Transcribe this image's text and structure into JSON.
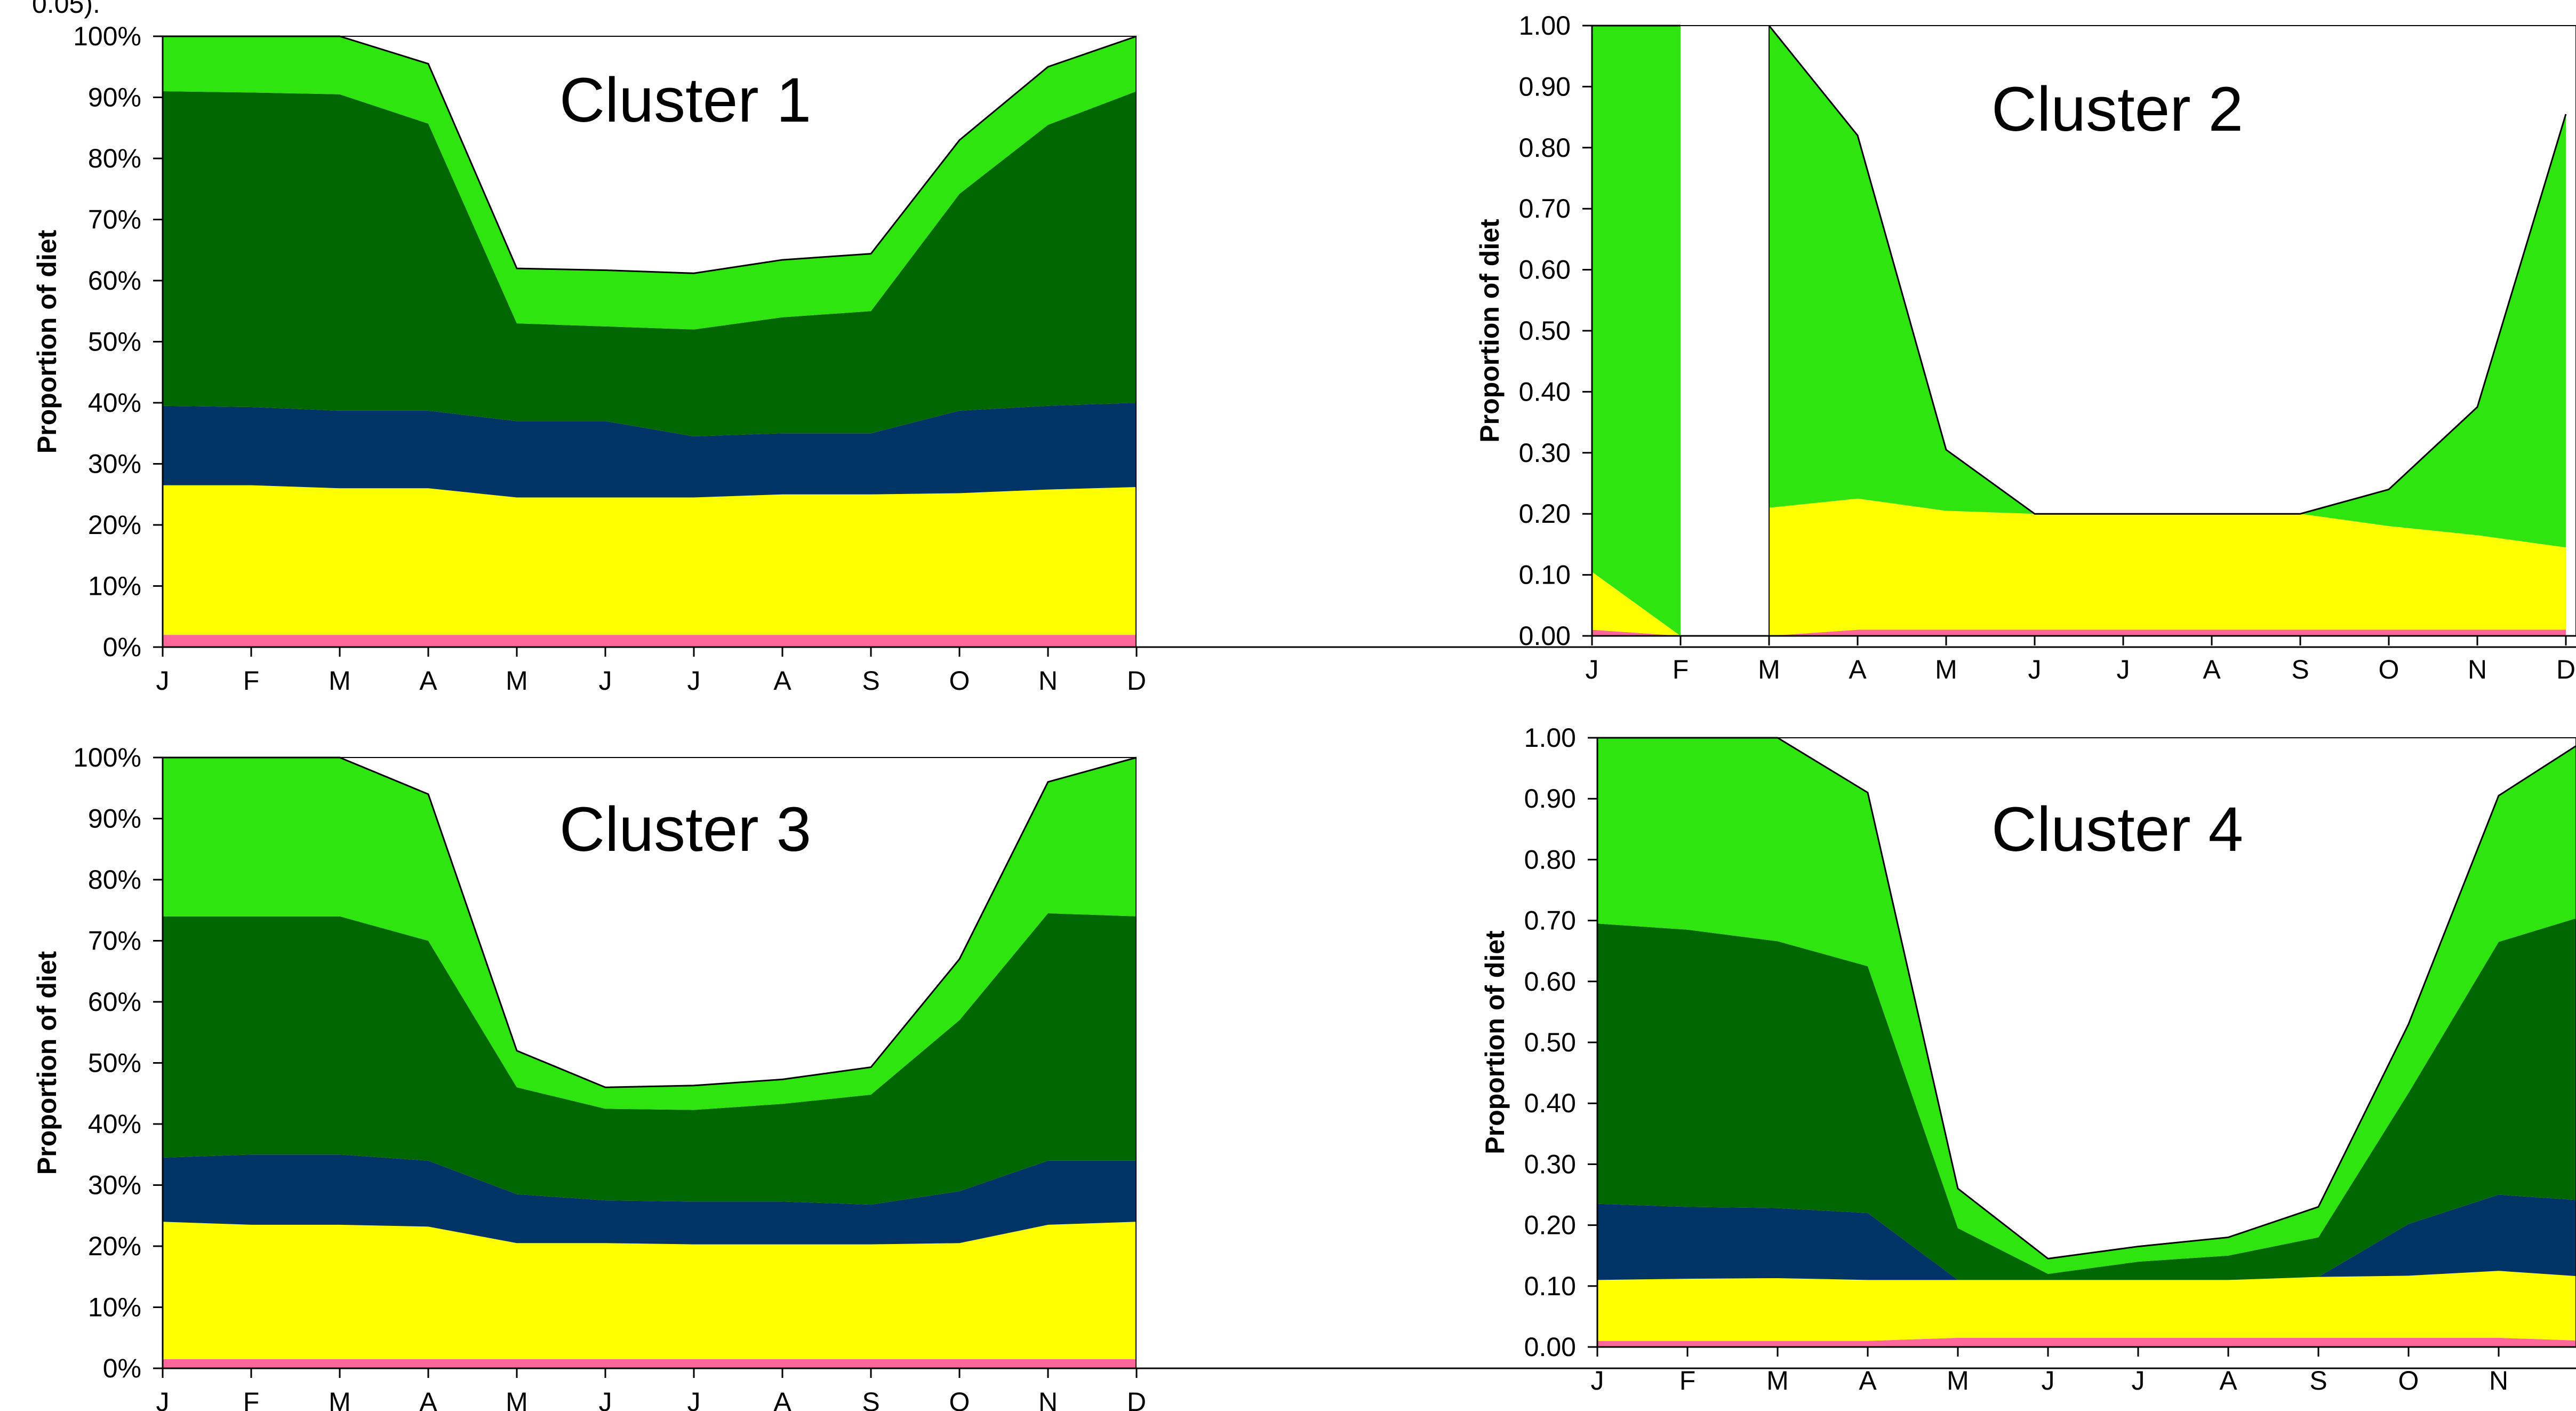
{
  "top_text": "0.05).",
  "colors": {
    "pink": "#ff6699",
    "yellow": "#ffff00",
    "navy": "#003366",
    "dark_green": "#006600",
    "light_green": "#2ee510"
  },
  "chart_data": [
    {
      "type": "area",
      "stacked": true,
      "title": "Cluster 1",
      "ylabel": "Proportion of diet",
      "categories": [
        "J",
        "F",
        "M",
        "A",
        "M",
        "J",
        "J",
        "A",
        "S",
        "O",
        "N",
        "D"
      ],
      "ylim": [
        0,
        1
      ],
      "yticks": [
        "0%",
        "10%",
        "20%",
        "30%",
        "40%",
        "50%",
        "60%",
        "70%",
        "80%",
        "90%",
        "100%"
      ],
      "series": [
        {
          "color": "#ff6699",
          "values": [
            0.02,
            0.02,
            0.02,
            0.02,
            0.02,
            0.02,
            0.02,
            0.02,
            0.02,
            0.02,
            0.02,
            0.02
          ]
        },
        {
          "color": "#ffff00",
          "values": [
            0.245,
            0.245,
            0.24,
            0.24,
            0.225,
            0.225,
            0.225,
            0.23,
            0.23,
            0.232,
            0.238,
            0.242
          ]
        },
        {
          "color": "#003366",
          "values": [
            0.13,
            0.128,
            0.127,
            0.127,
            0.125,
            0.125,
            0.1,
            0.1,
            0.1,
            0.135,
            0.137,
            0.138
          ]
        },
        {
          "color": "#006600",
          "values": [
            0.515,
            0.515,
            0.518,
            0.47,
            0.16,
            0.155,
            0.175,
            0.19,
            0.2,
            0.355,
            0.46,
            0.51
          ]
        },
        {
          "color": "#2ee510",
          "values": [
            0.09,
            0.092,
            0.095,
            0.098,
            0.09,
            0.092,
            0.092,
            0.094,
            0.094,
            0.088,
            0.095,
            0.09
          ]
        }
      ]
    },
    {
      "type": "area",
      "stacked": true,
      "title": "Cluster 2",
      "ylabel": "Proportion of diet",
      "categories": [
        "J",
        "F",
        "M",
        "A",
        "M",
        "J",
        "J",
        "A",
        "S",
        "O",
        "N",
        "D"
      ],
      "ylim": [
        0,
        1
      ],
      "yticks": [
        "0.00",
        "0.10",
        "0.20",
        "0.30",
        "0.40",
        "0.50",
        "0.60",
        "0.70",
        "0.80",
        "0.90",
        "1.00"
      ],
      "series": [
        {
          "color": "#ff6699",
          "values": [
            0.01,
            0.0,
            0.0,
            0.01,
            0.01,
            0.01,
            0.01,
            0.01,
            0.01,
            0.01,
            0.01,
            0.01
          ]
        },
        {
          "color": "#ffff00",
          "values": [
            0.095,
            0.0,
            0.21,
            0.215,
            0.195,
            0.19,
            0.19,
            0.19,
            0.19,
            0.17,
            0.155,
            0.135
          ]
        },
        {
          "color": "#2ee510",
          "values": [
            0.895,
            1.0,
            0.79,
            0.595,
            0.1,
            0.0,
            0.0,
            0.0,
            0.0,
            0.06,
            0.21,
            0.71
          ]
        }
      ],
      "gap_between": [
        "F",
        "M"
      ]
    },
    {
      "type": "area",
      "stacked": true,
      "title": "Cluster 3",
      "ylabel": "Proportion of diet",
      "categories": [
        "J",
        "F",
        "M",
        "A",
        "M",
        "J",
        "J",
        "A",
        "S",
        "O",
        "N",
        "D"
      ],
      "ylim": [
        0,
        1
      ],
      "yticks": [
        "0%",
        "10%",
        "20%",
        "30%",
        "40%",
        "50%",
        "60%",
        "70%",
        "80%",
        "90%",
        "100%"
      ],
      "series": [
        {
          "color": "#ff6699",
          "values": [
            0.015,
            0.015,
            0.015,
            0.015,
            0.015,
            0.015,
            0.015,
            0.015,
            0.015,
            0.015,
            0.015,
            0.015
          ]
        },
        {
          "color": "#ffff00",
          "values": [
            0.225,
            0.22,
            0.22,
            0.217,
            0.19,
            0.19,
            0.188,
            0.188,
            0.188,
            0.19,
            0.22,
            0.225
          ]
        },
        {
          "color": "#003366",
          "values": [
            0.105,
            0.115,
            0.115,
            0.108,
            0.08,
            0.07,
            0.07,
            0.07,
            0.065,
            0.085,
            0.105,
            0.1
          ]
        },
        {
          "color": "#006600",
          "values": [
            0.395,
            0.39,
            0.39,
            0.36,
            0.175,
            0.15,
            0.15,
            0.16,
            0.18,
            0.28,
            0.405,
            0.4
          ]
        },
        {
          "color": "#2ee510",
          "values": [
            0.26,
            0.26,
            0.26,
            0.24,
            0.06,
            0.035,
            0.04,
            0.04,
            0.045,
            0.1,
            0.215,
            0.26
          ]
        }
      ]
    },
    {
      "type": "area",
      "stacked": true,
      "title": "Cluster 4",
      "ylabel": "Proportion of diet",
      "categories": [
        "J",
        "F",
        "M",
        "A",
        "M",
        "J",
        "J",
        "A",
        "S",
        "O",
        "N",
        "D"
      ],
      "ylim": [
        0,
        1
      ],
      "yticks": [
        "0.00",
        "0.10",
        "0.20",
        "0.30",
        "0.40",
        "0.50",
        "0.60",
        "0.70",
        "0.80",
        "0.90",
        "1.00"
      ],
      "series": [
        {
          "color": "#ff6699",
          "values": [
            0.01,
            0.01,
            0.01,
            0.01,
            0.015,
            0.015,
            0.015,
            0.015,
            0.015,
            0.015,
            0.015,
            0.01
          ]
        },
        {
          "color": "#ffff00",
          "values": [
            0.1,
            0.102,
            0.103,
            0.1,
            0.095,
            0.095,
            0.095,
            0.095,
            0.1,
            0.102,
            0.11,
            0.105
          ]
        },
        {
          "color": "#003366",
          "values": [
            0.125,
            0.118,
            0.115,
            0.11,
            0.0,
            0.0,
            0.0,
            0.0,
            0.0,
            0.085,
            0.125,
            0.125
          ]
        },
        {
          "color": "#006600",
          "values": [
            0.46,
            0.455,
            0.438,
            0.405,
            0.085,
            0.01,
            0.03,
            0.04,
            0.065,
            0.215,
            0.415,
            0.47
          ]
        },
        {
          "color": "#2ee510",
          "values": [
            0.305,
            0.315,
            0.334,
            0.285,
            0.065,
            0.025,
            0.025,
            0.03,
            0.05,
            0.113,
            0.24,
            0.29
          ]
        }
      ]
    }
  ]
}
